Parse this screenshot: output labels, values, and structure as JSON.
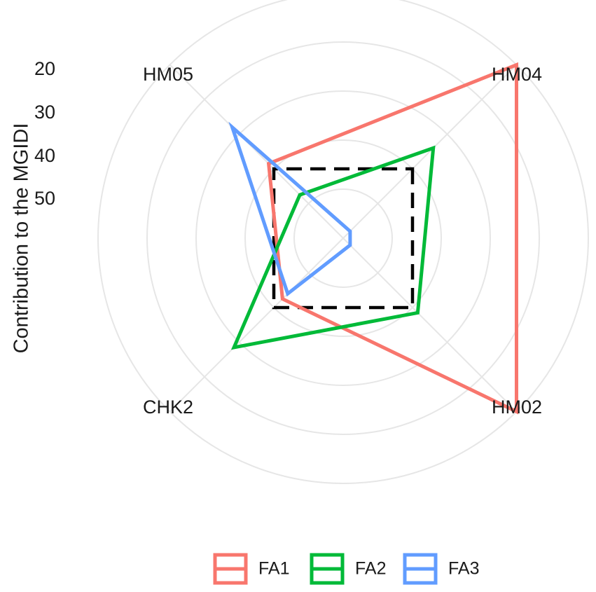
{
  "chart_data": {
    "type": "radar",
    "title": "",
    "ylabel": "Contribution to the MGIDI",
    "axis_ticks": [
      20,
      30,
      40,
      50
    ],
    "categories": [
      "HM04",
      "HM02",
      "CHK2",
      "HM05"
    ],
    "series": [
      {
        "name": "FA1",
        "color": "#F8766D",
        "values": [
          10,
          10,
          42.5,
          38.5
        ]
      },
      {
        "name": "FA2",
        "color": "#00BA38",
        "values": [
          34,
          38.5,
          28.5,
          47.5
        ]
      },
      {
        "name": "FA3",
        "color": "#619CFF",
        "values": [
          58,
          58,
          44,
          28
        ]
      }
    ],
    "reference": {
      "style": "dashed",
      "color": "#000000",
      "value": 40
    },
    "legend_position": "bottom",
    "grid": true
  }
}
